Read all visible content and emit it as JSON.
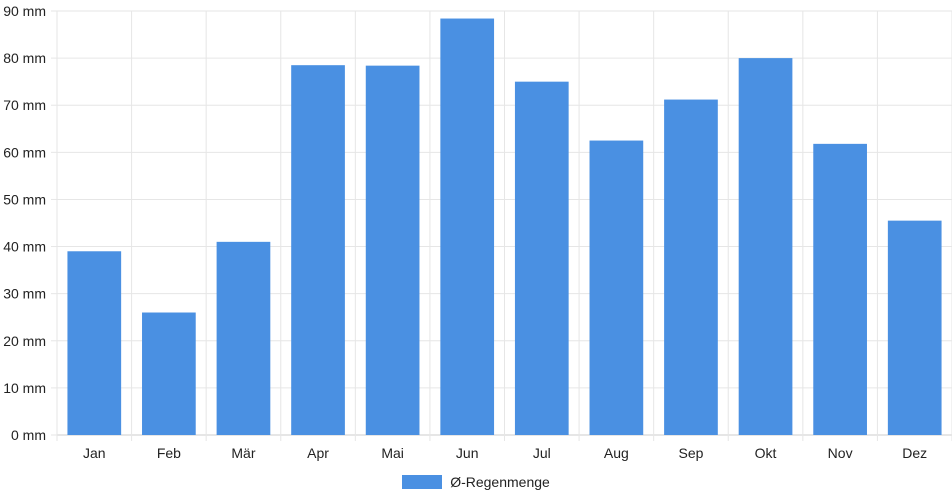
{
  "chart_data": {
    "type": "bar",
    "categories": [
      "Jan",
      "Feb",
      "Mär",
      "Apr",
      "Mai",
      "Jun",
      "Jul",
      "Aug",
      "Sep",
      "Okt",
      "Nov",
      "Dez"
    ],
    "series": [
      {
        "name": "Ø-Regenmenge",
        "values": [
          39,
          26,
          41,
          78.5,
          78.4,
          88.4,
          75,
          62.5,
          71.2,
          80,
          61.8,
          45.5
        ]
      }
    ],
    "unit": "mm",
    "yticks": [
      "0 mm",
      "10 mm",
      "20 mm",
      "30 mm",
      "40 mm",
      "50 mm",
      "60 mm",
      "70 mm",
      "80 mm",
      "90 mm"
    ],
    "ylim": [
      0,
      90
    ],
    "grid": true,
    "legend_position": "bottom",
    "colors": {
      "bar": "#4a90e2",
      "grid": "#e6e6e6",
      "axis": "#cccccc",
      "text": "#222222"
    }
  }
}
